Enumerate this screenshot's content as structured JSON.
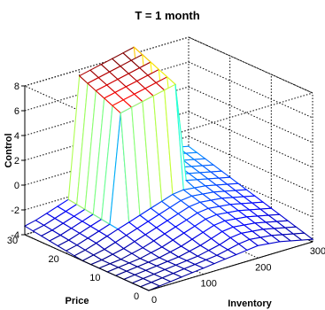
{
  "chart_data": {
    "type": "surface",
    "title": "T = 1 month",
    "xlabel": "Inventory",
    "ylabel": "Price",
    "zlabel": "Control",
    "xlim": [
      0,
      300
    ],
    "ylim": [
      0,
      30
    ],
    "zlim": [
      -4,
      8
    ],
    "x_ticks": [
      "0",
      "100",
      "200",
      "300"
    ],
    "y_ticks": [
      "0",
      "10",
      "20",
      "30"
    ],
    "z_ticks": [
      "-4",
      "-2",
      "0",
      "2",
      "4",
      "6",
      "8"
    ],
    "colormap": "jet",
    "grid": true,
    "surface": {
      "x": [
        0,
        20,
        40,
        60,
        80,
        100,
        120,
        140,
        160,
        180,
        200,
        220,
        240,
        260,
        280,
        300
      ],
      "y": [
        0,
        2,
        4,
        6,
        8,
        10,
        12,
        14,
        16,
        18,
        20,
        22,
        24,
        26,
        28,
        30
      ],
      "z": [
        [
          -4.0,
          -3.9,
          -3.8,
          -3.7,
          -3.6,
          -3.5,
          -3.4,
          -3.3,
          -3.2,
          -3.1,
          -3.0,
          -3.1,
          -3.2,
          -3.4,
          -3.6,
          -3.8
        ],
        [
          -4.0,
          -3.9,
          -3.8,
          -3.7,
          -3.6,
          -3.5,
          -3.4,
          -3.3,
          -3.1,
          -2.9,
          -2.8,
          -2.9,
          -3.0,
          -3.2,
          -3.4,
          -3.6
        ],
        [
          -4.0,
          -3.9,
          -3.8,
          -3.7,
          -3.6,
          -3.5,
          -3.4,
          -3.2,
          -3.0,
          -2.7,
          -2.6,
          -2.7,
          -2.8,
          -3.0,
          -3.2,
          -3.4
        ],
        [
          -4.0,
          -3.9,
          -3.8,
          -3.7,
          -3.6,
          -3.5,
          -3.3,
          -3.1,
          -2.8,
          -2.5,
          -2.4,
          -2.5,
          -2.6,
          -2.8,
          -3.0,
          -3.2
        ],
        [
          -4.0,
          -3.9,
          -3.8,
          -3.7,
          -3.6,
          -3.4,
          -3.2,
          -2.9,
          -2.6,
          -2.3,
          -2.2,
          -2.3,
          -2.4,
          -2.6,
          -2.8,
          -3.0
        ],
        [
          -4.0,
          -3.9,
          -3.8,
          -3.7,
          -3.5,
          -3.3,
          -3.0,
          -2.7,
          -2.4,
          -2.1,
          -2.0,
          -2.1,
          -2.2,
          -2.4,
          -2.6,
          -2.8
        ],
        [
          -4.0,
          -3.9,
          -3.8,
          -3.6,
          -3.4,
          -3.1,
          -2.8,
          -2.5,
          -2.2,
          -1.9,
          -1.8,
          -1.9,
          -2.0,
          -2.2,
          -2.4,
          -2.6
        ],
        [
          -4.0,
          -3.9,
          -3.7,
          -3.5,
          -3.2,
          -2.9,
          -2.6,
          -2.3,
          -2.0,
          -1.7,
          -1.6,
          -1.7,
          -1.8,
          -2.0,
          -2.2,
          -2.4
        ],
        [
          -4.0,
          -3.8,
          -3.6,
          -3.3,
          -3.0,
          -2.7,
          -2.4,
          -2.1,
          -1.8,
          -1.5,
          -1.4,
          -1.5,
          -1.6,
          -1.8,
          -2.0,
          -2.2
        ],
        [
          -3.9,
          -3.7,
          -3.4,
          -3.1,
          -2.8,
          -2.5,
          -2.2,
          -1.9,
          -1.6,
          -1.3,
          -1.2,
          -1.3,
          -1.4,
          -1.6,
          -1.8,
          -2.0
        ],
        [
          -3.8,
          -3.6,
          -3.3,
          -3.0,
          -2.7,
          6.0,
          6.2,
          6.4,
          6.6,
          6.8,
          7.0,
          -1.0,
          -1.2,
          -1.4,
          -1.6,
          -1.8
        ],
        [
          -3.7,
          -3.5,
          -3.2,
          -2.9,
          -2.6,
          6.3,
          6.5,
          6.7,
          6.9,
          7.1,
          7.3,
          -0.8,
          -1.0,
          -1.2,
          -1.4,
          -1.6
        ],
        [
          -3.6,
          -3.4,
          -3.1,
          -2.8,
          -2.5,
          6.6,
          6.8,
          7.0,
          7.2,
          7.4,
          7.6,
          -0.6,
          -0.8,
          -1.0,
          -1.2,
          -1.4
        ],
        [
          -3.5,
          -3.3,
          -3.0,
          -2.7,
          -2.4,
          6.9,
          7.1,
          7.3,
          7.5,
          7.7,
          7.9,
          -0.4,
          -0.6,
          -0.8,
          -1.0,
          -1.2
        ],
        [
          -3.4,
          -3.2,
          -2.9,
          -2.6,
          -2.3,
          7.2,
          7.4,
          7.6,
          7.8,
          8.0,
          8.2,
          -0.2,
          -0.4,
          -0.6,
          -0.8,
          -1.0
        ],
        [
          -3.3,
          -3.1,
          -2.8,
          -2.5,
          -2.2,
          7.5,
          7.7,
          7.9,
          8.1,
          8.3,
          8.5,
          0.0,
          -0.2,
          -0.4,
          -0.6,
          -0.8
        ]
      ]
    }
  }
}
